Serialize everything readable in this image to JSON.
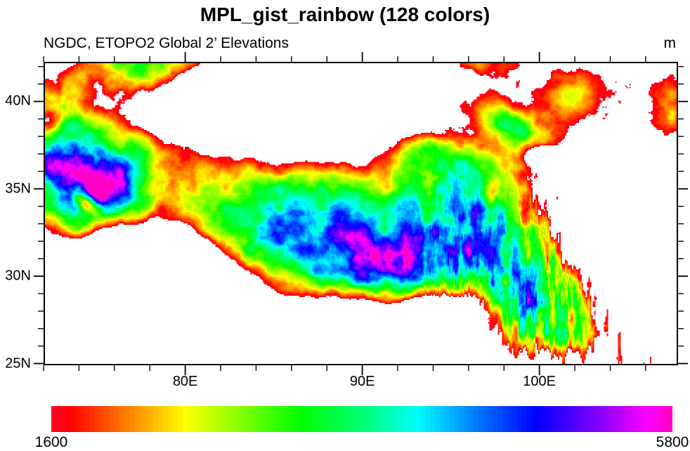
{
  "header": {
    "title": "MPL_gist_rainbow (128 colors)",
    "subtitle_left": "NGDC, ETOPO2 Global 2’ Elevations",
    "units_label": "m"
  },
  "chart_data": {
    "type": "heatmap",
    "title": "MPL_gist_rainbow (128 colors)",
    "subtitle": "NGDC, ETOPO2 Global 2’ Elevations",
    "units": "m",
    "description": "ETOPO2 2-minute global elevation raster over the Tibetan Plateau region, color-filled with the MPL_gist_rainbow colormap (128 discrete colors); elevations below 1600 m are drawn white",
    "x_axis": {
      "kind": "longitude",
      "range_deg_east": [
        72.0,
        107.83
      ],
      "major_ticks": [
        {
          "value": 80,
          "label": "80E"
        },
        {
          "value": 90,
          "label": "90E"
        },
        {
          "value": 100,
          "label": "100E"
        }
      ],
      "minor_tick_step_deg": 2,
      "ticks_on_sides": [
        "bottom",
        "top"
      ]
    },
    "y_axis": {
      "kind": "latitude",
      "range_deg_north": [
        24.9,
        42.27
      ],
      "major_ticks": [
        {
          "value": 25,
          "label": "25N"
        },
        {
          "value": 30,
          "label": "30N"
        },
        {
          "value": 35,
          "label": "35N"
        },
        {
          "value": 40,
          "label": "40N"
        }
      ],
      "minor_tick_step_deg": 1,
      "ticks_on_sides": [
        "left",
        "right"
      ]
    },
    "colorbar": {
      "orientation": "horizontal",
      "min": 1600,
      "max": 5800,
      "min_label": "1600",
      "max_label": "5800",
      "n_colors": 128,
      "below_min_color": "#ffffff",
      "stops": [
        [
          0.0,
          "#ff0028"
        ],
        [
          0.03,
          "#ff0000"
        ],
        [
          0.215,
          "#ffff00"
        ],
        [
          0.4,
          "#00ff00"
        ],
        [
          0.51,
          "#00ff7d"
        ],
        [
          0.59,
          "#00ffff"
        ],
        [
          0.68,
          "#0080ff"
        ],
        [
          0.78,
          "#0000ff"
        ],
        [
          0.88,
          "#8000ff"
        ],
        [
          0.96,
          "#ff00ff"
        ],
        [
          1.0,
          "#ff00bf"
        ]
      ]
    },
    "notable_features": [
      "white low-elevation Tarim basin in the northwest ringed by a red fringe",
      "blue and magenta high-plateau core across the center",
      "yellow-green Qaidam basin area in the upper middle",
      "red patches over low northeast terrain",
      "green-to-red eastern slope with north-south valley striping",
      "white Indo-Gangetic plains along the southern edge below the sharp Himalayan rim"
    ],
    "grid": false,
    "legend": "colorbar bottom"
  }
}
